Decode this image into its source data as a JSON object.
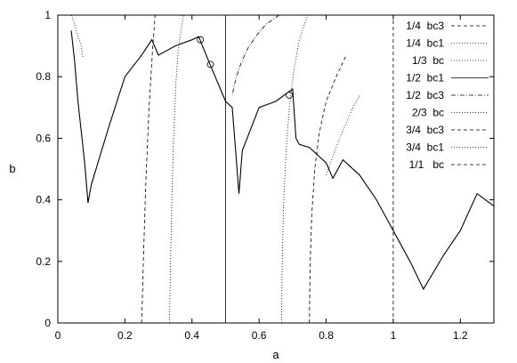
{
  "chart_data": {
    "type": "line",
    "xlabel": "a",
    "ylabel": "b",
    "xlim": [
      0,
      1.3
    ],
    "ylim": [
      0,
      1
    ],
    "xticks": [
      0,
      0.2,
      0.4,
      0.6,
      0.8,
      1,
      1.2
    ],
    "xtick_labels": [
      "0",
      "0.2",
      "0.4",
      "0.6",
      "0.8",
      "1",
      "1.2"
    ],
    "yticks": [
      0,
      0.2,
      0.4,
      0.6,
      0.8,
      1
    ],
    "ytick_labels": [
      "0",
      "0.2",
      "0.4",
      "0.6",
      "0.8",
      "1"
    ],
    "grid": false,
    "legend_position": "top-right",
    "series": [
      {
        "name": "1/4  bc3",
        "style": "dashed",
        "x": [
          0.25,
          0.255,
          0.262,
          0.272,
          0.282,
          0.29
        ],
        "y": [
          0,
          0.2,
          0.45,
          0.7,
          0.88,
          1.0
        ]
      },
      {
        "name": "1/4  bc1",
        "style": "dotted",
        "x": [
          0.04,
          0.05,
          0.06,
          0.07,
          0.075
        ],
        "y": [
          1.0,
          0.97,
          0.93,
          0.9,
          0.86
        ]
      },
      {
        "name": "1/3  bc",
        "style": "dotted",
        "x": [
          0.333,
          0.336,
          0.34,
          0.345,
          0.352,
          0.36,
          0.375
        ],
        "y": [
          0,
          0.2,
          0.4,
          0.6,
          0.78,
          0.9,
          1.0
        ]
      },
      {
        "name": "1/2  bc1",
        "style": "solid",
        "x": [
          0.5,
          0.5
        ],
        "y": [
          0,
          1.0
        ]
      },
      {
        "name": "1/2  bc3",
        "style": "dashdot",
        "x": [
          0.66,
          0.62,
          0.59,
          0.565,
          0.545,
          0.53,
          0.52
        ],
        "y": [
          1.0,
          0.97,
          0.93,
          0.89,
          0.84,
          0.79,
          0.74
        ]
      },
      {
        "name": "2/3  bc",
        "style": "dotted",
        "x": [
          0.667,
          0.669,
          0.673,
          0.68,
          0.69,
          0.705,
          0.72,
          0.745
        ],
        "y": [
          0,
          0.2,
          0.38,
          0.55,
          0.7,
          0.83,
          0.92,
          1.0
        ]
      },
      {
        "name": "3/4  bc3",
        "style": "dashed",
        "x": [
          0.75,
          0.752,
          0.757,
          0.766,
          0.78,
          0.8,
          0.83,
          0.86
        ],
        "y": [
          0,
          0.18,
          0.35,
          0.5,
          0.62,
          0.72,
          0.8,
          0.87
        ]
      },
      {
        "name": "3/4  bc1",
        "style": "dotted",
        "x": [
          0.8,
          0.82,
          0.84,
          0.86,
          0.88,
          0.9
        ],
        "y": [
          0.48,
          0.54,
          0.6,
          0.65,
          0.7,
          0.74
        ]
      },
      {
        "name": "1/1   bc",
        "style": "dashed",
        "x": [
          1.0,
          1.0
        ],
        "y": [
          0,
          1.0
        ]
      },
      {
        "name": "",
        "style": "solid",
        "x": [
          0.04,
          0.05,
          0.06,
          0.07,
          0.08,
          0.09,
          0.1,
          0.15,
          0.2,
          0.25,
          0.28,
          0.3,
          0.35,
          0.4,
          0.42,
          0.45,
          0.5,
          0.52,
          0.54,
          0.55,
          0.6,
          0.65,
          0.7,
          0.71,
          0.72,
          0.75,
          0.8,
          0.82,
          0.85,
          0.9,
          0.95,
          1.0,
          1.05,
          1.09,
          1.15,
          1.2,
          1.25,
          1.3
        ],
        "y": [
          0.95,
          0.85,
          0.72,
          0.62,
          0.52,
          0.39,
          0.45,
          0.63,
          0.8,
          0.87,
          0.92,
          0.87,
          0.9,
          0.92,
          0.93,
          0.85,
          0.72,
          0.7,
          0.42,
          0.56,
          0.7,
          0.72,
          0.76,
          0.6,
          0.58,
          0.57,
          0.52,
          0.47,
          0.53,
          0.48,
          0.4,
          0.3,
          0.2,
          0.11,
          0.22,
          0.3,
          0.42,
          0.38
        ]
      }
    ],
    "markers": {
      "x": [
        0.425,
        0.455,
        0.69
      ],
      "y": [
        0.92,
        0.84,
        0.74
      ]
    }
  }
}
